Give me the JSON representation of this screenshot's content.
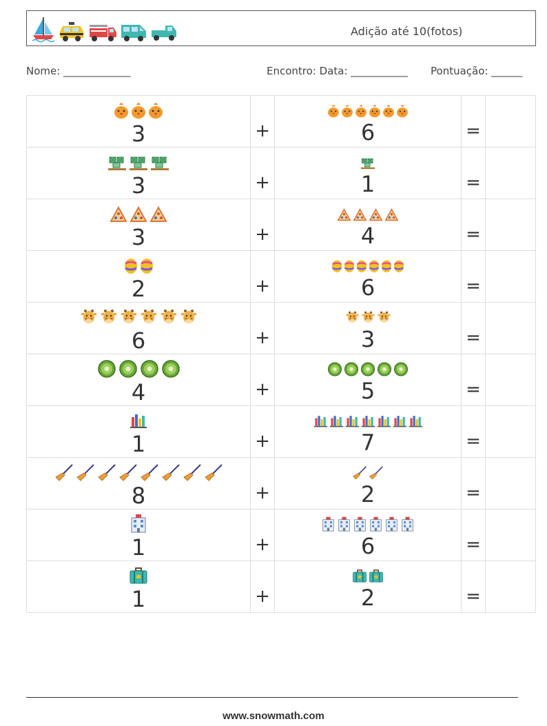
{
  "header": {
    "title": "Adição até 10(fotos)",
    "icons": [
      "sailboat-icon",
      "taxi-icon",
      "fire-truck-icon",
      "van-icon",
      "pickup-truck-icon"
    ]
  },
  "fields": {
    "name": "Nome: _____________",
    "date": "Encontro: Data: ___________",
    "score": "Pontuação: ______"
  },
  "problems": [
    {
      "a": 3,
      "b": 6,
      "icon": "chick-icon"
    },
    {
      "a": 3,
      "b": 1,
      "icon": "crates-icon"
    },
    {
      "a": 3,
      "b": 4,
      "icon": "pizza-slice-icon"
    },
    {
      "a": 2,
      "b": 6,
      "icon": "easter-egg-icon"
    },
    {
      "a": 6,
      "b": 3,
      "icon": "giraffe-icon"
    },
    {
      "a": 4,
      "b": 5,
      "icon": "kiwi-icon"
    },
    {
      "a": 1,
      "b": 7,
      "icon": "books-icon"
    },
    {
      "a": 8,
      "b": 2,
      "icon": "broom-icon"
    },
    {
      "a": 1,
      "b": 6,
      "icon": "building-icon"
    },
    {
      "a": 1,
      "b": 2,
      "icon": "suitcase-icon"
    }
  ],
  "symbols": {
    "plus": "+",
    "equals": "="
  },
  "footer": {
    "url": "www.snowmath.com"
  }
}
